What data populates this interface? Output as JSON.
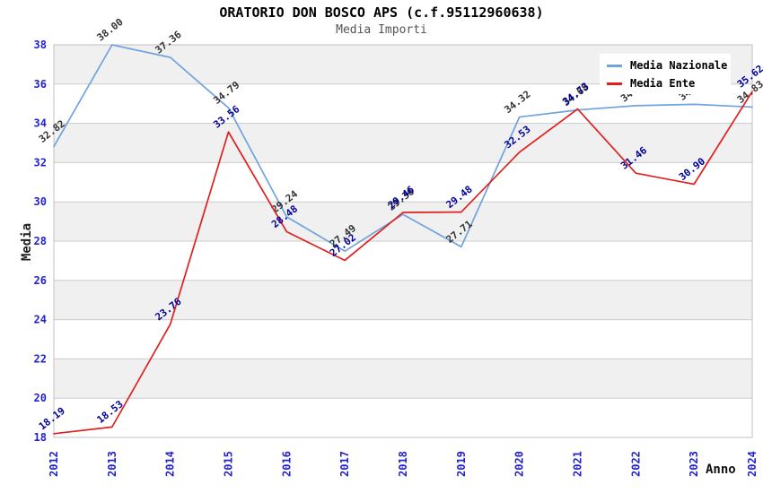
{
  "header": {
    "title": "ORATORIO DON BOSCO APS (c.f.95112960638)",
    "subtitle": "Media Importi"
  },
  "chart_data": {
    "type": "line",
    "title": "ORATORIO DON BOSCO APS (c.f.95112960638)",
    "subtitle": "Media Importi",
    "xlabel": "Anno",
    "ylabel": "Media",
    "x": [
      "2012",
      "2013",
      "2014",
      "2015",
      "2016",
      "2017",
      "2018",
      "2019",
      "2020",
      "2021",
      "2022",
      "2023",
      "2024"
    ],
    "ylim": [
      18,
      38
    ],
    "ytick_step": 2,
    "yticks": [
      18,
      20,
      22,
      24,
      26,
      28,
      30,
      32,
      34,
      36,
      38
    ],
    "grid": true,
    "plot_bands": {
      "interval": 2,
      "colors": [
        "#F0F0F0",
        "#FFFFFF"
      ]
    },
    "legend": {
      "position": "top-right",
      "items": [
        "Media Nazionale",
        "Media Ente"
      ]
    },
    "series": [
      {
        "name": "Media Nazionale",
        "color": "#70A3DC",
        "label_color": "#333333",
        "values": [
          32.82,
          38.0,
          37.36,
          34.79,
          29.24,
          27.49,
          29.36,
          27.71,
          34.32,
          34.68,
          34.9,
          34.97,
          34.83
        ]
      },
      {
        "name": "Media Ente",
        "color": "#E02020",
        "label_color": "#000099",
        "values": [
          18.19,
          18.53,
          23.76,
          33.56,
          28.48,
          27.02,
          29.46,
          29.48,
          32.53,
          34.73,
          31.46,
          30.9,
          35.62
        ]
      }
    ]
  },
  "colors": {
    "tick_label": "#2222CC",
    "grid_line": "#CCCCCC",
    "plot_border": "#C0C0C0",
    "band_grey": "#F0F0F0",
    "band_white": "#FFFFFF",
    "title": "#000000",
    "subtitle": "#555555"
  }
}
